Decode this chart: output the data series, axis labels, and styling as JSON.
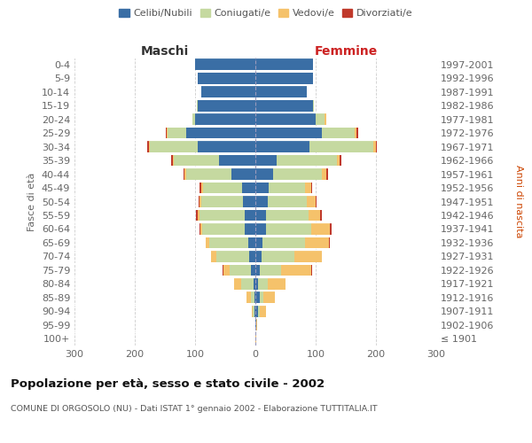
{
  "age_groups": [
    "100+",
    "95-99",
    "90-94",
    "85-89",
    "80-84",
    "75-79",
    "70-74",
    "65-69",
    "60-64",
    "55-59",
    "50-54",
    "45-49",
    "40-44",
    "35-39",
    "30-34",
    "25-29",
    "20-24",
    "15-19",
    "10-14",
    "5-9",
    "0-4"
  ],
  "birth_years": [
    "≤ 1901",
    "1902-1906",
    "1907-1911",
    "1912-1916",
    "1917-1921",
    "1922-1926",
    "1927-1931",
    "1932-1936",
    "1937-1941",
    "1942-1946",
    "1947-1951",
    "1952-1956",
    "1957-1961",
    "1962-1966",
    "1967-1971",
    "1972-1976",
    "1977-1981",
    "1982-1986",
    "1987-1991",
    "1992-1996",
    "1997-2001"
  ],
  "male_celibi": [
    0,
    0,
    2,
    2,
    3,
    8,
    10,
    12,
    18,
    18,
    20,
    22,
    40,
    60,
    95,
    115,
    100,
    95,
    90,
    95,
    100
  ],
  "male_coniugati": [
    0,
    0,
    2,
    5,
    20,
    35,
    55,
    65,
    70,
    75,
    70,
    65,
    75,
    75,
    80,
    30,
    5,
    2,
    0,
    0,
    0
  ],
  "male_vedovi": [
    0,
    0,
    2,
    8,
    12,
    10,
    8,
    5,
    3,
    3,
    2,
    2,
    2,
    2,
    2,
    2,
    0,
    0,
    0,
    0,
    0
  ],
  "male_divorziati": [
    0,
    0,
    0,
    0,
    0,
    1,
    1,
    1,
    2,
    3,
    2,
    3,
    2,
    3,
    2,
    2,
    0,
    0,
    0,
    0,
    0
  ],
  "female_celibi": [
    0,
    1,
    5,
    8,
    5,
    8,
    10,
    12,
    18,
    18,
    20,
    22,
    30,
    35,
    90,
    110,
    100,
    95,
    85,
    95,
    95
  ],
  "female_coniugati": [
    0,
    0,
    2,
    5,
    15,
    35,
    55,
    70,
    75,
    70,
    65,
    60,
    80,
    100,
    105,
    55,
    15,
    2,
    0,
    0,
    0
  ],
  "female_vedovi": [
    1,
    2,
    10,
    20,
    30,
    50,
    45,
    40,
    30,
    20,
    15,
    10,
    8,
    5,
    5,
    3,
    2,
    0,
    0,
    0,
    0
  ],
  "female_divorziati": [
    0,
    0,
    0,
    0,
    0,
    1,
    1,
    2,
    3,
    3,
    2,
    2,
    2,
    2,
    2,
    2,
    0,
    0,
    0,
    0,
    0
  ],
  "color_celibi": "#3a6ea5",
  "color_coniugati": "#c5d9a0",
  "color_vedovi": "#f5c26b",
  "color_divorziati": "#c0392b",
  "title": "Popolazione per età, sesso e stato civile - 2002",
  "subtitle": "COMUNE DI ORGOSOLO (NU) - Dati ISTAT 1° gennaio 2002 - Elaborazione TUTTITALIA.IT",
  "xlabel_left": "Maschi",
  "xlabel_right": "Femmine",
  "ylabel_left": "Fasce di età",
  "ylabel_right": "Anni di nascita",
  "xlim": 300,
  "background_color": "#ffffff",
  "grid_color": "#cccccc"
}
